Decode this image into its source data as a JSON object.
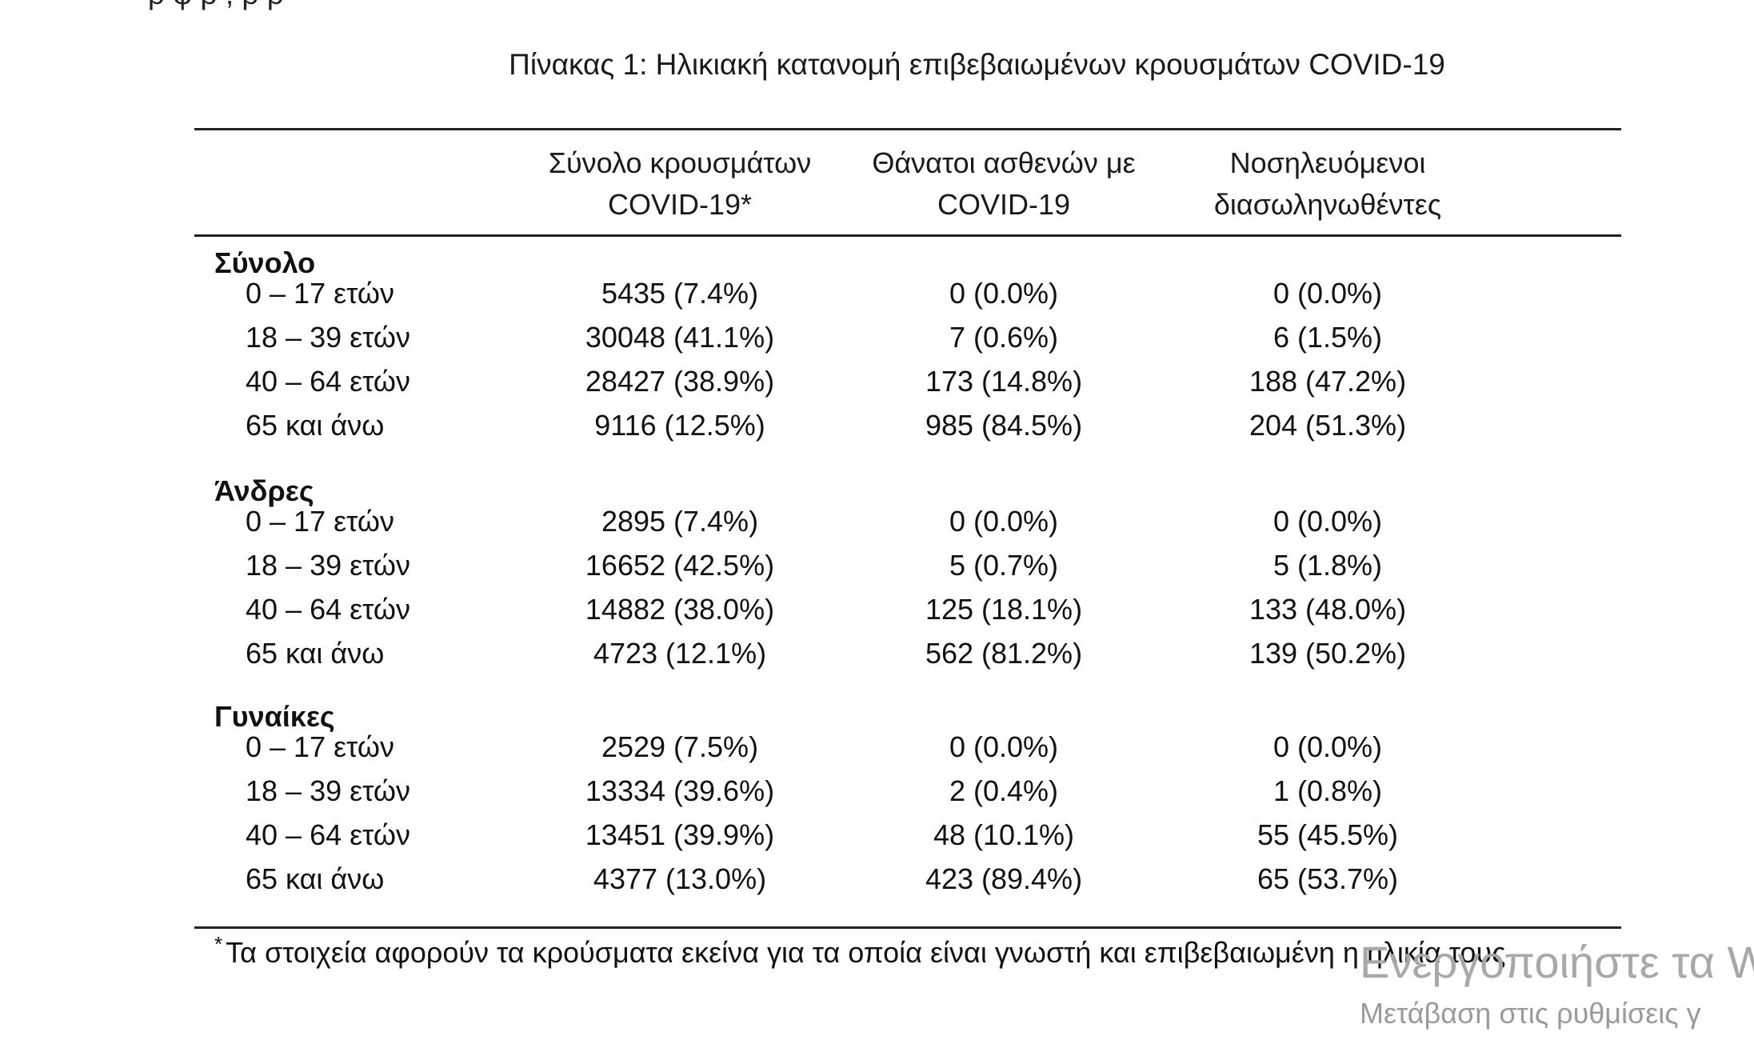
{
  "top_fragment": "ρ                        φ  ρ      ,          ρ                  ρ",
  "table": {
    "title": "Πίνακας 1: Ηλικιακή κατανομή επιβεβαιωμένων κρουσμάτων COVID-19",
    "columns": [
      {
        "line1": "Σύνολο κρουσμάτων",
        "line2": "COVID-19*"
      },
      {
        "line1": "Θάνατοι ασθενών με",
        "line2": "COVID-19"
      },
      {
        "line1": "Νοσηλευόμενοι",
        "line2": "διασωληνωθέντες"
      }
    ],
    "groups": [
      {
        "label": "Σύνολο",
        "rows": [
          {
            "age": "0 – 17 ετών",
            "cases": "5435 (7.4%)",
            "deaths": "0 (0.0%)",
            "intubated": "0 (0.0%)"
          },
          {
            "age": "18 – 39 ετών",
            "cases": "30048 (41.1%)",
            "deaths": "7 (0.6%)",
            "intubated": "6 (1.5%)"
          },
          {
            "age": "40 – 64 ετών",
            "cases": "28427 (38.9%)",
            "deaths": "173 (14.8%)",
            "intubated": "188 (47.2%)"
          },
          {
            "age": "65 και άνω",
            "cases": "9116 (12.5%)",
            "deaths": "985 (84.5%)",
            "intubated": "204 (51.3%)"
          }
        ]
      },
      {
        "label": "Άνδρες",
        "rows": [
          {
            "age": "0 – 17 ετών",
            "cases": "2895 (7.4%)",
            "deaths": "0 (0.0%)",
            "intubated": "0 (0.0%)"
          },
          {
            "age": "18 – 39 ετών",
            "cases": "16652 (42.5%)",
            "deaths": "5 (0.7%)",
            "intubated": "5 (1.8%)"
          },
          {
            "age": "40 – 64 ετών",
            "cases": "14882 (38.0%)",
            "deaths": "125 (18.1%)",
            "intubated": "133 (48.0%)"
          },
          {
            "age": "65 και άνω",
            "cases": "4723 (12.1%)",
            "deaths": "562 (81.2%)",
            "intubated": "139 (50.2%)"
          }
        ]
      },
      {
        "label": "Γυναίκες",
        "rows": [
          {
            "age": "0 – 17 ετών",
            "cases": "2529 (7.5%)",
            "deaths": "0 (0.0%)",
            "intubated": "0 (0.0%)"
          },
          {
            "age": "18 – 39 ετών",
            "cases": "13334 (39.6%)",
            "deaths": "2 (0.4%)",
            "intubated": "1 (0.8%)"
          },
          {
            "age": "40 – 64 ετών",
            "cases": "13451 (39.9%)",
            "deaths": "48 (10.1%)",
            "intubated": "55 (45.5%)"
          },
          {
            "age": "65 και άνω",
            "cases": "4377 (13.0%)",
            "deaths": "423 (89.4%)",
            "intubated": "65 (53.7%)"
          }
        ]
      }
    ],
    "footnote_mark": "*",
    "footnote": "Τα στοιχεία αφορούν τα κρούσματα εκείνα για τα οποία είναι γνωστή και επιβεβαιωμένη η ηλικία τους"
  },
  "watermark": {
    "line1": "Ενεργοποιήστε τα W",
    "line2": "Μετάβαση στις ρυθμίσεις γ"
  }
}
